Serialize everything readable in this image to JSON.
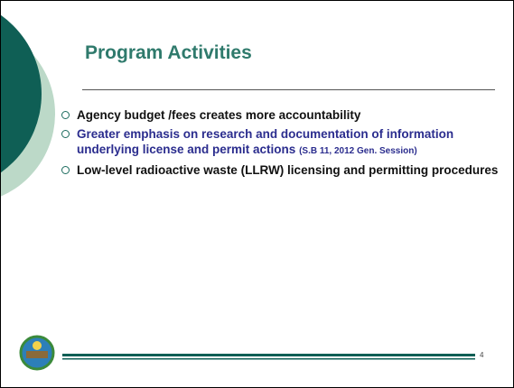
{
  "title": "Program Activities",
  "bullets": [
    {
      "text": "Agency budget /fees creates more accountability"
    },
    {
      "text": "Greater emphasis on research and documentation of information underlying license and permit actions",
      "note": "(S.B 11, 2012 Gen. Session)"
    },
    {
      "text": "Low-level radioactive waste (LLRW) licensing and permitting procedures"
    }
  ],
  "page_number": "4"
}
